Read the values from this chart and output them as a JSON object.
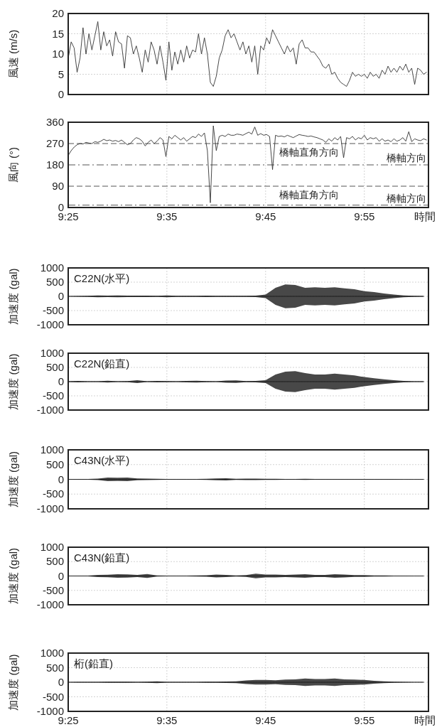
{
  "chart_data": [
    {
      "type": "line",
      "ylabel": "風速 (m/s)",
      "xlim": [
        9.4167,
        10.025
      ],
      "ylim": [
        0,
        20
      ],
      "yticks": [
        0,
        5,
        10,
        15,
        20
      ],
      "tick_labels": "y",
      "grid": true,
      "x": [
        9.4167,
        9.4217,
        9.4267,
        9.4317,
        9.4367,
        9.4417,
        9.4467,
        9.4517,
        9.4567,
        9.4617,
        9.4667,
        9.4717,
        9.4767,
        9.4817,
        9.4867,
        9.4917,
        9.4967,
        9.5017,
        9.5067,
        9.5117,
        9.5167,
        9.5217,
        9.5267,
        9.5317,
        9.5367,
        9.5417,
        9.5467,
        9.5517,
        9.5567,
        9.5617,
        9.5667,
        9.5717,
        9.5767,
        9.5817,
        9.5867,
        9.5917,
        9.5967,
        9.6017,
        9.6067,
        9.6117,
        9.6167,
        9.6217,
        9.6267,
        9.6317,
        9.6367,
        9.6417,
        9.6467,
        9.6517,
        9.6567,
        9.6617,
        9.6667,
        9.6717,
        9.6767,
        9.6817,
        9.6867,
        9.6917,
        9.6967,
        9.7017,
        9.7067,
        9.7117,
        9.7167,
        9.7217,
        9.7267,
        9.7317,
        9.7367,
        9.7417,
        9.7467,
        9.7517,
        9.7567,
        9.7617,
        9.7667,
        9.7717,
        9.7767,
        9.7817,
        9.7867,
        9.7917,
        9.7967,
        9.8017,
        9.8067,
        9.8117,
        9.8167,
        9.8217,
        9.8267,
        9.8317,
        9.8367,
        9.8417,
        9.8467,
        9.8517,
        9.8567,
        9.8617,
        9.8667,
        9.8717,
        9.8767,
        9.8817,
        9.8867,
        9.8917,
        9.8967,
        9.9017,
        9.9067,
        9.9117,
        9.9167,
        9.9217,
        9.9267,
        9.9317,
        9.9367,
        9.9417,
        9.9467,
        9.9517,
        9.9567,
        9.9617,
        9.9667,
        9.9717,
        9.9767,
        9.9817,
        9.9867,
        9.9917,
        9.9967,
        10.0017,
        10.0067,
        10.0117,
        10.0167,
        10.0217
      ],
      "series": [
        {
          "color": "#333333",
          "values": [
            9,
            13,
            11.5,
            5.5,
            9,
            16.5,
            10,
            15,
            11,
            14.5,
            18,
            11,
            15.5,
            12,
            13.5,
            9.5,
            15.5,
            13,
            12.5,
            6.5,
            14.5,
            14,
            10,
            12,
            9,
            5.5,
            11,
            8,
            13,
            11,
            7.5,
            12,
            8,
            3.5,
            13,
            6,
            10.5,
            7.5,
            11,
            8,
            12,
            9,
            11,
            10.5,
            15,
            10,
            14,
            10,
            3,
            2,
            4.5,
            9,
            11,
            14.5,
            16,
            14,
            15,
            13,
            11,
            13,
            10,
            12,
            8,
            12,
            5,
            12,
            11,
            14,
            12.5,
            16,
            14.5,
            13,
            11.5,
            10,
            12,
            10.5,
            11.5,
            7.5,
            12.5,
            13.5,
            11.5,
            11.5,
            10.5,
            10.5,
            9.5,
            8.5,
            7,
            6.5,
            7.5,
            5,
            5.5,
            4,
            3,
            2.5,
            2,
            3.5,
            5.5,
            4.5,
            5,
            4.5,
            5,
            4,
            5.5,
            4.5,
            5,
            4,
            6,
            5,
            7,
            5.5,
            6.5,
            5.5,
            7,
            6,
            7.5,
            5.5,
            6.5,
            2.5,
            6.5,
            6,
            5,
            5.5
          ]
        }
      ]
    },
    {
      "type": "line",
      "ylabel": "風向 (°)",
      "xlabel": "時間",
      "xlim": [
        9.4167,
        10.025
      ],
      "ylim": [
        0,
        360
      ],
      "yticks": [
        0,
        90,
        180,
        270,
        360
      ],
      "grid": "x",
      "xticks": [
        {
          "value": 9.4167,
          "label": "9:25"
        },
        {
          "value": 9.5833,
          "label": "9:35"
        },
        {
          "value": 9.75,
          "label": "9:45"
        },
        {
          "value": 9.9167,
          "label": "9:55"
        }
      ],
      "ref_lines": [
        {
          "axis": "y",
          "value": 270,
          "label": "橋軸直角方向",
          "line_style": "dashed",
          "color": "#555555"
        },
        {
          "axis": "y",
          "value": 180,
          "label": "橋軸方向",
          "line_style": "dashdot",
          "color": "#555555"
        },
        {
          "axis": "y",
          "value": 90,
          "label": "橋軸直角方向",
          "line_style": "dashed",
          "color": "#555555"
        },
        {
          "axis": "y",
          "value": 10,
          "label": "橋軸方向",
          "line_style": "dashdot",
          "color": "#555555"
        }
      ],
      "x": [
        9.4167,
        9.4217,
        9.4267,
        9.4317,
        9.4367,
        9.4417,
        9.4467,
        9.4517,
        9.4567,
        9.4617,
        9.4667,
        9.4717,
        9.4767,
        9.4817,
        9.4867,
        9.4917,
        9.4967,
        9.5017,
        9.5067,
        9.5117,
        9.5167,
        9.5217,
        9.5267,
        9.5317,
        9.5367,
        9.5417,
        9.5467,
        9.5517,
        9.5567,
        9.5617,
        9.5667,
        9.5717,
        9.5767,
        9.5817,
        9.5867,
        9.5917,
        9.5967,
        9.6017,
        9.6067,
        9.6117,
        9.6167,
        9.6217,
        9.6267,
        9.6317,
        9.6367,
        9.6417,
        9.6467,
        9.6517,
        9.6567,
        9.6617,
        9.6667,
        9.6717,
        9.6767,
        9.6817,
        9.6867,
        9.6917,
        9.6967,
        9.7017,
        9.7067,
        9.7117,
        9.7167,
        9.7217,
        9.7267,
        9.7317,
        9.7367,
        9.7417,
        9.7467,
        9.7517,
        9.7567,
        9.7617,
        9.7667,
        9.7717,
        9.7767,
        9.7817,
        9.7867,
        9.7917,
        9.7967,
        9.8017,
        9.8067,
        9.8117,
        9.8167,
        9.8217,
        9.8267,
        9.8317,
        9.8367,
        9.8417,
        9.8467,
        9.8517,
        9.8567,
        9.8617,
        9.8667,
        9.8717,
        9.8767,
        9.8817,
        9.8867,
        9.8917,
        9.8967,
        9.9017,
        9.9067,
        9.9117,
        9.9167,
        9.9217,
        9.9267,
        9.9317,
        9.9367,
        9.9417,
        9.9467,
        9.9517,
        9.9567,
        9.9617,
        9.9667,
        9.9717,
        9.9767,
        9.9817,
        9.9867,
        9.9917,
        9.9967,
        10.0017,
        10.0067,
        10.0117,
        10.0167,
        10.0217
      ],
      "series": [
        {
          "color": "#333333",
          "values": [
            220,
            240,
            255,
            265,
            270,
            268,
            275,
            272,
            270,
            278,
            275,
            280,
            288,
            282,
            285,
            280,
            283,
            278,
            285,
            275,
            265,
            270,
            285,
            295,
            290,
            280,
            260,
            275,
            285,
            270,
            280,
            295,
            285,
            215,
            300,
            290,
            305,
            295,
            285,
            295,
            280,
            290,
            300,
            295,
            310,
            300,
            315,
            240,
            20,
            345,
            240,
            300,
            305,
            300,
            310,
            305,
            305,
            310,
            308,
            305,
            312,
            318,
            310,
            340,
            305,
            312,
            305,
            308,
            300,
            160,
            305,
            300,
            302,
            298,
            305,
            300,
            295,
            302,
            308,
            305,
            303,
            300,
            302,
            298,
            295,
            290,
            285,
            275,
            290,
            280,
            295,
            285,
            300,
            210,
            295,
            290,
            300,
            285,
            295,
            290,
            305,
            285,
            295,
            290,
            295,
            280,
            290,
            280,
            285,
            278,
            290,
            280,
            285,
            295,
            280,
            320,
            278,
            290,
            285,
            282,
            290,
            285
          ]
        }
      ]
    },
    {
      "type": "line",
      "ylabel": "加速度 (gal)",
      "annotations": [
        "C22N(水平)"
      ],
      "xlim": [
        9.4167,
        10.025
      ],
      "ylim": [
        -1000,
        1000
      ],
      "yticks": [
        -1000,
        -500,
        0,
        500,
        1000
      ],
      "tick_labels": "y",
      "grid": true,
      "x": [
        9.4167,
        9.4333,
        9.45,
        9.4667,
        9.4833,
        9.5,
        9.5167,
        9.5333,
        9.55,
        9.5667,
        9.5833,
        9.6,
        9.6167,
        9.6333,
        9.65,
        9.6667,
        9.6833,
        9.7,
        9.7167,
        9.7333,
        9.75,
        9.7667,
        9.7833,
        9.8,
        9.8167,
        9.8333,
        9.85,
        9.8667,
        9.8833,
        9.9,
        9.9167,
        9.9333,
        9.95,
        9.9667,
        9.9833,
        10.0,
        10.0167
      ],
      "series": [
        {
          "color": "#1a1a1a",
          "values": [
            0,
            0,
            0,
            0,
            0,
            0,
            0,
            0,
            0,
            0,
            0,
            0,
            0,
            0,
            0,
            0,
            0,
            0,
            0,
            0,
            0,
            0,
            0,
            0,
            0,
            0,
            0,
            0,
            0,
            0,
            0,
            0,
            0,
            0,
            0,
            0,
            0
          ],
          "upper": [
            5,
            10,
            20,
            30,
            25,
            30,
            25,
            25,
            25,
            20,
            30,
            20,
            20,
            20,
            25,
            20,
            20,
            20,
            20,
            25,
            60,
            300,
            420,
            400,
            300,
            320,
            300,
            320,
            280,
            250,
            180,
            150,
            100,
            60,
            30,
            20,
            15
          ],
          "lower": [
            -5,
            -10,
            -20,
            -30,
            -25,
            -30,
            -25,
            -25,
            -25,
            -20,
            -30,
            -20,
            -20,
            -20,
            -25,
            -20,
            -20,
            -20,
            -20,
            -25,
            -60,
            -300,
            -420,
            -400,
            -300,
            -320,
            -300,
            -320,
            -280,
            -250,
            -180,
            -150,
            -100,
            -60,
            -30,
            -20,
            -15
          ]
        }
      ]
    },
    {
      "type": "line",
      "ylabel": "加速度 (gal)",
      "annotations": [
        "C22N(鉛直)"
      ],
      "xlim": [
        9.4167,
        10.025
      ],
      "ylim": [
        -1000,
        1000
      ],
      "yticks": [
        -1000,
        -500,
        0,
        500,
        1000
      ],
      "tick_labels": "y",
      "grid": true,
      "x": [
        9.4167,
        9.4333,
        9.45,
        9.4667,
        9.4833,
        9.5,
        9.5167,
        9.5333,
        9.55,
        9.5667,
        9.5833,
        9.6,
        9.6167,
        9.6333,
        9.65,
        9.6667,
        9.6833,
        9.7,
        9.7167,
        9.7333,
        9.75,
        9.7667,
        9.7833,
        9.8,
        9.8167,
        9.8333,
        9.85,
        9.8667,
        9.8833,
        9.9,
        9.9167,
        9.9333,
        9.95,
        9.9667,
        9.9833,
        10.0,
        10.0167
      ],
      "series": [
        {
          "color": "#1a1a1a",
          "values": [
            0,
            0,
            0,
            0,
            0,
            0,
            0,
            0,
            0,
            0,
            0,
            0,
            0,
            0,
            0,
            0,
            0,
            0,
            0,
            0,
            0,
            0,
            0,
            0,
            0,
            0,
            0,
            0,
            0,
            0,
            0,
            0,
            0,
            0,
            0,
            0,
            0
          ],
          "upper": [
            10,
            25,
            15,
            10,
            30,
            15,
            20,
            50,
            15,
            25,
            20,
            15,
            25,
            30,
            20,
            15,
            40,
            45,
            20,
            25,
            50,
            250,
            350,
            370,
            300,
            250,
            250,
            280,
            250,
            220,
            160,
            120,
            80,
            50,
            25,
            15,
            10
          ],
          "lower": [
            -10,
            -25,
            -15,
            -10,
            -30,
            -15,
            -20,
            -50,
            -15,
            -25,
            -20,
            -15,
            -25,
            -30,
            -20,
            -15,
            -40,
            -45,
            -20,
            -25,
            -50,
            -250,
            -350,
            -370,
            -300,
            -250,
            -250,
            -280,
            -250,
            -220,
            -160,
            -120,
            -80,
            -50,
            -25,
            -15,
            -10
          ]
        }
      ]
    },
    {
      "type": "line",
      "ylabel": "加速度 (gal)",
      "annotations": [
        "C43N(水平)"
      ],
      "xlim": [
        9.4167,
        10.025
      ],
      "ylim": [
        -1000,
        1000
      ],
      "yticks": [
        -1000,
        -500,
        0,
        500,
        1000
      ],
      "tick_labels": "y",
      "grid": true,
      "x": [
        9.4167,
        9.4333,
        9.45,
        9.4667,
        9.4833,
        9.5,
        9.5167,
        9.5333,
        9.55,
        9.5667,
        9.5833,
        9.6,
        9.6167,
        9.6333,
        9.65,
        9.6667,
        9.6833,
        9.7,
        9.7167,
        9.7333,
        9.75,
        9.7667,
        9.7833,
        9.8,
        9.8167,
        9.8333,
        9.85,
        9.8667,
        9.8833,
        9.9,
        9.9167,
        9.9333,
        9.95,
        9.9667,
        9.9833,
        10.0,
        10.0167
      ],
      "series": [
        {
          "color": "#1a1a1a",
          "values": [
            0,
            0,
            0,
            0,
            0,
            0,
            0,
            0,
            0,
            0,
            0,
            0,
            0,
            0,
            0,
            0,
            0,
            0,
            0,
            0,
            0,
            0,
            0,
            0,
            0,
            0,
            0,
            0,
            0,
            0,
            0,
            0,
            0,
            0,
            0,
            0,
            0
          ],
          "upper": [
            5,
            10,
            15,
            25,
            60,
            55,
            60,
            30,
            25,
            20,
            15,
            15,
            15,
            15,
            20,
            30,
            35,
            20,
            25,
            25,
            20,
            20,
            15,
            15,
            20,
            15,
            15,
            15,
            10,
            10,
            10,
            10,
            10,
            10,
            5,
            5,
            5
          ],
          "lower": [
            -5,
            -10,
            -15,
            -25,
            -60,
            -55,
            -60,
            -30,
            -25,
            -20,
            -15,
            -15,
            -15,
            -15,
            -20,
            -30,
            -35,
            -20,
            -25,
            -25,
            -20,
            -20,
            -15,
            -15,
            -20,
            -15,
            -15,
            -15,
            -10,
            -10,
            -10,
            -10,
            -10,
            -10,
            -5,
            -5,
            -5
          ]
        }
      ]
    },
    {
      "type": "line",
      "ylabel": "加速度 (gal)",
      "annotations": [
        "C43N(鉛直)"
      ],
      "xlim": [
        9.4167,
        10.025
      ],
      "ylim": [
        -1000,
        1000
      ],
      "yticks": [
        -1000,
        -500,
        0,
        500,
        1000
      ],
      "tick_labels": "y",
      "grid": true,
      "x": [
        9.4167,
        9.4333,
        9.45,
        9.4667,
        9.4833,
        9.5,
        9.5167,
        9.5333,
        9.55,
        9.5667,
        9.5833,
        9.6,
        9.6167,
        9.6333,
        9.65,
        9.6667,
        9.6833,
        9.7,
        9.7167,
        9.7333,
        9.75,
        9.7667,
        9.7833,
        9.8,
        9.8167,
        9.8333,
        9.85,
        9.8667,
        9.8833,
        9.9,
        9.9167,
        9.9333,
        9.95,
        9.9667,
        9.9833,
        10.0,
        10.0167
      ],
      "series": [
        {
          "color": "#1a1a1a",
          "values": [
            0,
            0,
            0,
            0,
            0,
            0,
            0,
            0,
            0,
            0,
            0,
            0,
            0,
            0,
            0,
            0,
            0,
            0,
            0,
            0,
            0,
            0,
            0,
            0,
            0,
            0,
            0,
            0,
            0,
            0,
            0,
            0,
            0,
            0,
            0,
            0,
            0
          ],
          "upper": [
            5,
            10,
            15,
            40,
            45,
            60,
            55,
            40,
            70,
            20,
            15,
            15,
            15,
            20,
            25,
            50,
            40,
            20,
            30,
            80,
            50,
            50,
            40,
            50,
            60,
            40,
            40,
            60,
            50,
            30,
            30,
            20,
            20,
            15,
            10,
            5,
            5
          ],
          "lower": [
            -5,
            -10,
            -15,
            -40,
            -45,
            -60,
            -55,
            -40,
            -70,
            -20,
            -15,
            -15,
            -15,
            -20,
            -25,
            -50,
            -40,
            -20,
            -30,
            -80,
            -50,
            -50,
            -40,
            -50,
            -60,
            -40,
            -40,
            -60,
            -50,
            -30,
            -30,
            -20,
            -20,
            -15,
            -10,
            -5,
            -5
          ]
        }
      ]
    },
    {
      "type": "line",
      "ylabel": "加速度 (gal)",
      "xlabel": "時間",
      "annotations": [
        "桁(鉛直)"
      ],
      "xlim": [
        9.4167,
        10.025
      ],
      "ylim": [
        -1000,
        1000
      ],
      "yticks": [
        -1000,
        -500,
        0,
        500,
        1000
      ],
      "grid": true,
      "xticks": [
        {
          "value": 9.4167,
          "label": "9:25"
        },
        {
          "value": 9.5833,
          "label": "9:35"
        },
        {
          "value": 9.75,
          "label": "9:45"
        },
        {
          "value": 9.9167,
          "label": "9:55"
        }
      ],
      "x": [
        9.4167,
        9.4333,
        9.45,
        9.4667,
        9.4833,
        9.5,
        9.5167,
        9.5333,
        9.55,
        9.5667,
        9.5833,
        9.6,
        9.6167,
        9.6333,
        9.65,
        9.6667,
        9.6833,
        9.7,
        9.7167,
        9.7333,
        9.75,
        9.7667,
        9.7833,
        9.8,
        9.8167,
        9.8333,
        9.85,
        9.8667,
        9.8833,
        9.9,
        9.9167,
        9.9333,
        9.95,
        9.9667,
        9.9833,
        10.0,
        10.0167
      ],
      "series": [
        {
          "color": "#1a1a1a",
          "values": [
            0,
            0,
            0,
            0,
            0,
            0,
            0,
            0,
            0,
            0,
            0,
            0,
            0,
            0,
            0,
            0,
            0,
            0,
            0,
            0,
            0,
            0,
            0,
            0,
            0,
            0,
            0,
            0,
            0,
            0,
            0,
            0,
            0,
            0,
            0,
            0,
            0
          ],
          "upper": [
            5,
            10,
            10,
            15,
            20,
            20,
            20,
            15,
            20,
            30,
            15,
            15,
            15,
            15,
            20,
            20,
            25,
            30,
            60,
            80,
            80,
            70,
            90,
            100,
            130,
            110,
            110,
            130,
            100,
            90,
            80,
            50,
            30,
            20,
            10,
            5,
            5
          ],
          "lower": [
            -5,
            -10,
            -10,
            -15,
            -20,
            -20,
            -20,
            -15,
            -20,
            -30,
            -15,
            -15,
            -15,
            -15,
            -20,
            -20,
            -25,
            -30,
            -60,
            -80,
            -80,
            -70,
            -90,
            -100,
            -130,
            -110,
            -110,
            -130,
            -100,
            -90,
            -80,
            -50,
            -30,
            -20,
            -10,
            -5,
            -5
          ]
        }
      ]
    }
  ]
}
